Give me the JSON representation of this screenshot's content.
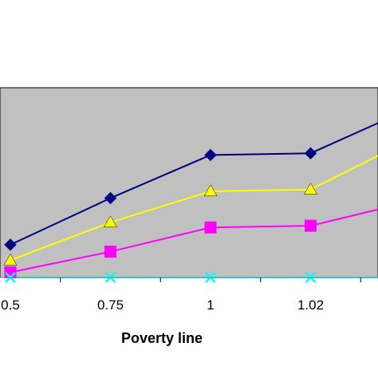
{
  "chart_data": {
    "type": "line",
    "xlabel": "Poverty line",
    "ylabel": "",
    "categories": [
      "0.5",
      "0.75",
      "1",
      "1.02",
      ""
    ],
    "grid": false,
    "plot_background": "#c0c0c0",
    "series": [
      {
        "color": "#000080",
        "marker": "diamond",
        "values": [
          0.19,
          0.46,
          0.71,
          0.72,
          0.98
        ]
      },
      {
        "color": "#ffff00",
        "marker": "triangle",
        "values": [
          0.1,
          0.32,
          0.5,
          0.51,
          0.8
        ]
      },
      {
        "color": "#ff00ff",
        "marker": "square",
        "values": [
          0.03,
          0.15,
          0.29,
          0.3,
          0.44
        ]
      },
      {
        "color": "#00ffff",
        "marker": "x",
        "values": [
          0.0,
          0.0,
          0.0,
          0.0,
          0.0
        ]
      }
    ]
  }
}
